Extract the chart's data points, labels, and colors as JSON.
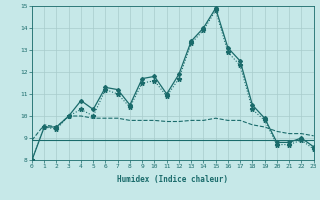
{
  "xlabel": "Humidex (Indice chaleur)",
  "xlim": [
    0,
    23
  ],
  "ylim": [
    8,
    15
  ],
  "xticks": [
    0,
    1,
    2,
    3,
    4,
    5,
    6,
    7,
    8,
    9,
    10,
    11,
    12,
    13,
    14,
    15,
    16,
    17,
    18,
    19,
    20,
    21,
    22,
    23
  ],
  "yticks": [
    8,
    9,
    10,
    11,
    12,
    13,
    14,
    15
  ],
  "bg_color": "#c6e8e8",
  "grid_color": "#a8cccc",
  "line_color": "#1a6b6b",
  "x": [
    0,
    1,
    2,
    3,
    4,
    5,
    6,
    7,
    8,
    9,
    10,
    11,
    12,
    13,
    14,
    15,
    16,
    17,
    18,
    19,
    20,
    21,
    22,
    23
  ],
  "line1_diamond": [
    8.0,
    9.5,
    9.5,
    10.0,
    10.7,
    10.3,
    11.3,
    11.2,
    10.5,
    11.7,
    11.8,
    11.0,
    11.9,
    13.4,
    14.0,
    14.9,
    13.1,
    12.5,
    10.5,
    9.9,
    8.8,
    8.8,
    9.0,
    8.6
  ],
  "line2_star": [
    8.0,
    9.5,
    9.4,
    10.0,
    10.3,
    10.0,
    11.2,
    11.0,
    10.4,
    11.5,
    11.6,
    10.9,
    11.7,
    13.3,
    13.9,
    14.8,
    12.9,
    12.3,
    10.3,
    9.8,
    8.7,
    8.7,
    8.9,
    8.5
  ],
  "line3_dashed": [
    8.9,
    9.6,
    9.5,
    10.0,
    10.0,
    9.9,
    9.9,
    9.9,
    9.8,
    9.8,
    9.8,
    9.75,
    9.75,
    9.8,
    9.8,
    9.9,
    9.8,
    9.8,
    9.6,
    9.5,
    9.3,
    9.2,
    9.2,
    9.1
  ],
  "line4_solid": [
    8.9,
    8.9,
    8.9,
    8.9,
    8.9,
    8.9,
    8.9,
    8.9,
    8.9,
    8.9,
    8.9,
    8.9,
    8.9,
    8.9,
    8.9,
    8.9,
    8.9,
    8.9,
    8.9,
    8.9,
    8.9,
    8.9,
    8.9,
    8.9
  ]
}
